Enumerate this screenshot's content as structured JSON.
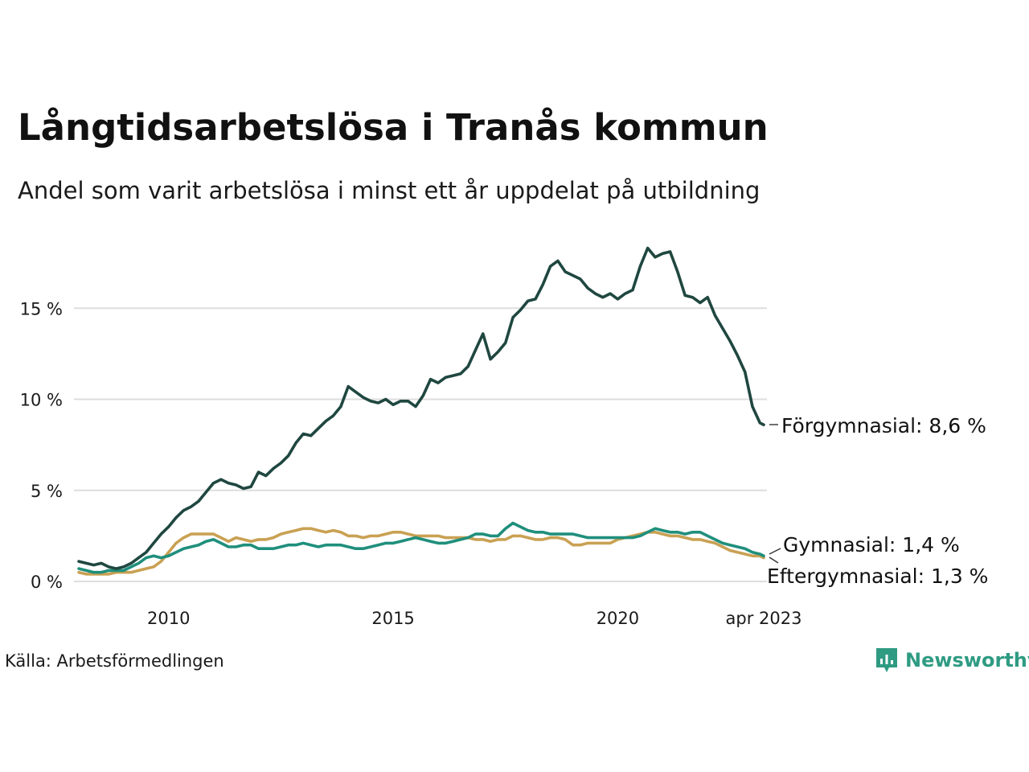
{
  "header": {
    "title": "Långtidsarbetslösa i Tranås kommun",
    "subtitle": "Andel som varit arbetslösa i minst ett år uppdelat på utbildning"
  },
  "footer": {
    "source": "Källa: Arbetsförmedlingen",
    "brand": "Newsworthy",
    "brand_color": "#2e9b82"
  },
  "chart_data": {
    "type": "line",
    "x_start": "2008-01",
    "x_end": "2023-04",
    "ylim": [
      0,
      19
    ],
    "grid": true,
    "y_ticks": [
      {
        "value": 0,
        "label": "0 %"
      },
      {
        "value": 5,
        "label": "5 %"
      },
      {
        "value": 10,
        "label": "10 %"
      },
      {
        "value": 15,
        "label": "15 %"
      }
    ],
    "x_ticks": [
      {
        "value": "2010-01",
        "label": "2010"
      },
      {
        "value": "2015-01",
        "label": "2015"
      },
      {
        "value": "2020-01",
        "label": "2020"
      },
      {
        "value": "2023-04",
        "label": "apr 2023"
      }
    ],
    "series": [
      {
        "name": "Förgymnasial",
        "end_label": "Förgymnasial: 8,6 %",
        "color": "#1f4740",
        "points": [
          [
            "2008-01",
            1.1
          ],
          [
            "2008-03",
            1.0
          ],
          [
            "2008-05",
            0.9
          ],
          [
            "2008-07",
            1.0
          ],
          [
            "2008-09",
            0.8
          ],
          [
            "2008-11",
            0.7
          ],
          [
            "2009-01",
            0.8
          ],
          [
            "2009-03",
            1.0
          ],
          [
            "2009-05",
            1.3
          ],
          [
            "2009-07",
            1.6
          ],
          [
            "2009-09",
            2.1
          ],
          [
            "2009-11",
            2.6
          ],
          [
            "2010-01",
            3.0
          ],
          [
            "2010-03",
            3.5
          ],
          [
            "2010-05",
            3.9
          ],
          [
            "2010-07",
            4.1
          ],
          [
            "2010-09",
            4.4
          ],
          [
            "2010-11",
            4.9
          ],
          [
            "2011-01",
            5.4
          ],
          [
            "2011-03",
            5.6
          ],
          [
            "2011-05",
            5.4
          ],
          [
            "2011-07",
            5.3
          ],
          [
            "2011-09",
            5.1
          ],
          [
            "2011-11",
            5.2
          ],
          [
            "2012-01",
            6.0
          ],
          [
            "2012-03",
            5.8
          ],
          [
            "2012-05",
            6.2
          ],
          [
            "2012-07",
            6.5
          ],
          [
            "2012-09",
            6.9
          ],
          [
            "2012-11",
            7.6
          ],
          [
            "2013-01",
            8.1
          ],
          [
            "2013-03",
            8.0
          ],
          [
            "2013-05",
            8.4
          ],
          [
            "2013-07",
            8.8
          ],
          [
            "2013-09",
            9.1
          ],
          [
            "2013-11",
            9.6
          ],
          [
            "2014-01",
            10.7
          ],
          [
            "2014-03",
            10.4
          ],
          [
            "2014-05",
            10.1
          ],
          [
            "2014-07",
            9.9
          ],
          [
            "2014-09",
            9.8
          ],
          [
            "2014-11",
            10.0
          ],
          [
            "2015-01",
            9.7
          ],
          [
            "2015-03",
            9.9
          ],
          [
            "2015-05",
            9.9
          ],
          [
            "2015-07",
            9.6
          ],
          [
            "2015-09",
            10.2
          ],
          [
            "2015-11",
            11.1
          ],
          [
            "2016-01",
            10.9
          ],
          [
            "2016-03",
            11.2
          ],
          [
            "2016-05",
            11.3
          ],
          [
            "2016-07",
            11.4
          ],
          [
            "2016-09",
            11.8
          ],
          [
            "2016-11",
            12.7
          ],
          [
            "2017-01",
            13.6
          ],
          [
            "2017-03",
            12.2
          ],
          [
            "2017-05",
            12.6
          ],
          [
            "2017-07",
            13.1
          ],
          [
            "2017-09",
            14.5
          ],
          [
            "2017-11",
            14.9
          ],
          [
            "2018-01",
            15.4
          ],
          [
            "2018-03",
            15.5
          ],
          [
            "2018-05",
            16.3
          ],
          [
            "2018-07",
            17.3
          ],
          [
            "2018-09",
            17.6
          ],
          [
            "2018-11",
            17.0
          ],
          [
            "2019-01",
            16.8
          ],
          [
            "2019-03",
            16.6
          ],
          [
            "2019-05",
            16.1
          ],
          [
            "2019-07",
            15.8
          ],
          [
            "2019-09",
            15.6
          ],
          [
            "2019-11",
            15.8
          ],
          [
            "2020-01",
            15.5
          ],
          [
            "2020-03",
            15.8
          ],
          [
            "2020-05",
            16.0
          ],
          [
            "2020-07",
            17.3
          ],
          [
            "2020-09",
            18.3
          ],
          [
            "2020-11",
            17.8
          ],
          [
            "2021-01",
            18.0
          ],
          [
            "2021-03",
            18.1
          ],
          [
            "2021-05",
            17.0
          ],
          [
            "2021-07",
            15.7
          ],
          [
            "2021-09",
            15.6
          ],
          [
            "2021-11",
            15.3
          ],
          [
            "2022-01",
            15.6
          ],
          [
            "2022-03",
            14.6
          ],
          [
            "2022-05",
            13.9
          ],
          [
            "2022-07",
            13.2
          ],
          [
            "2022-09",
            12.4
          ],
          [
            "2022-11",
            11.5
          ],
          [
            "2023-01",
            9.6
          ],
          [
            "2023-03",
            8.7
          ],
          [
            "2023-04",
            8.6
          ]
        ]
      },
      {
        "name": "Gymnasial",
        "end_label": "Gymnasial: 1,4 %",
        "color": "#1f8f7c",
        "points": [
          [
            "2008-01",
            0.7
          ],
          [
            "2008-03",
            0.6
          ],
          [
            "2008-05",
            0.5
          ],
          [
            "2008-07",
            0.5
          ],
          [
            "2008-09",
            0.6
          ],
          [
            "2008-11",
            0.6
          ],
          [
            "2009-01",
            0.6
          ],
          [
            "2009-03",
            0.8
          ],
          [
            "2009-05",
            1.0
          ],
          [
            "2009-07",
            1.3
          ],
          [
            "2009-09",
            1.4
          ],
          [
            "2009-11",
            1.3
          ],
          [
            "2010-01",
            1.4
          ],
          [
            "2010-03",
            1.6
          ],
          [
            "2010-05",
            1.8
          ],
          [
            "2010-07",
            1.9
          ],
          [
            "2010-09",
            2.0
          ],
          [
            "2010-11",
            2.2
          ],
          [
            "2011-01",
            2.3
          ],
          [
            "2011-03",
            2.1
          ],
          [
            "2011-05",
            1.9
          ],
          [
            "2011-07",
            1.9
          ],
          [
            "2011-09",
            2.0
          ],
          [
            "2011-11",
            2.0
          ],
          [
            "2012-01",
            1.8
          ],
          [
            "2012-03",
            1.8
          ],
          [
            "2012-05",
            1.8
          ],
          [
            "2012-07",
            1.9
          ],
          [
            "2012-09",
            2.0
          ],
          [
            "2012-11",
            2.0
          ],
          [
            "2013-01",
            2.1
          ],
          [
            "2013-03",
            2.0
          ],
          [
            "2013-05",
            1.9
          ],
          [
            "2013-07",
            2.0
          ],
          [
            "2013-09",
            2.0
          ],
          [
            "2013-11",
            2.0
          ],
          [
            "2014-01",
            1.9
          ],
          [
            "2014-03",
            1.8
          ],
          [
            "2014-05",
            1.8
          ],
          [
            "2014-07",
            1.9
          ],
          [
            "2014-09",
            2.0
          ],
          [
            "2014-11",
            2.1
          ],
          [
            "2015-01",
            2.1
          ],
          [
            "2015-03",
            2.2
          ],
          [
            "2015-05",
            2.3
          ],
          [
            "2015-07",
            2.4
          ],
          [
            "2015-09",
            2.3
          ],
          [
            "2015-11",
            2.2
          ],
          [
            "2016-01",
            2.1
          ],
          [
            "2016-03",
            2.1
          ],
          [
            "2016-05",
            2.2
          ],
          [
            "2016-07",
            2.3
          ],
          [
            "2016-09",
            2.4
          ],
          [
            "2016-11",
            2.6
          ],
          [
            "2017-01",
            2.6
          ],
          [
            "2017-03",
            2.5
          ],
          [
            "2017-05",
            2.5
          ],
          [
            "2017-07",
            2.9
          ],
          [
            "2017-09",
            3.2
          ],
          [
            "2017-11",
            3.0
          ],
          [
            "2018-01",
            2.8
          ],
          [
            "2018-03",
            2.7
          ],
          [
            "2018-05",
            2.7
          ],
          [
            "2018-07",
            2.6
          ],
          [
            "2018-09",
            2.6
          ],
          [
            "2018-11",
            2.6
          ],
          [
            "2019-01",
            2.6
          ],
          [
            "2019-03",
            2.5
          ],
          [
            "2019-05",
            2.4
          ],
          [
            "2019-07",
            2.4
          ],
          [
            "2019-09",
            2.4
          ],
          [
            "2019-11",
            2.4
          ],
          [
            "2020-01",
            2.4
          ],
          [
            "2020-03",
            2.4
          ],
          [
            "2020-05",
            2.4
          ],
          [
            "2020-07",
            2.5
          ],
          [
            "2020-09",
            2.7
          ],
          [
            "2020-11",
            2.9
          ],
          [
            "2021-01",
            2.8
          ],
          [
            "2021-03",
            2.7
          ],
          [
            "2021-05",
            2.7
          ],
          [
            "2021-07",
            2.6
          ],
          [
            "2021-09",
            2.7
          ],
          [
            "2021-11",
            2.7
          ],
          [
            "2022-01",
            2.5
          ],
          [
            "2022-03",
            2.3
          ],
          [
            "2022-05",
            2.1
          ],
          [
            "2022-07",
            2.0
          ],
          [
            "2022-09",
            1.9
          ],
          [
            "2022-11",
            1.8
          ],
          [
            "2023-01",
            1.6
          ],
          [
            "2023-03",
            1.5
          ],
          [
            "2023-04",
            1.4
          ]
        ]
      },
      {
        "name": "Eftergymnasial",
        "end_label": "Eftergymnasial: 1,3 %",
        "color": "#c9a153",
        "points": [
          [
            "2008-01",
            0.5
          ],
          [
            "2008-03",
            0.4
          ],
          [
            "2008-05",
            0.4
          ],
          [
            "2008-07",
            0.4
          ],
          [
            "2008-09",
            0.4
          ],
          [
            "2008-11",
            0.5
          ],
          [
            "2009-01",
            0.5
          ],
          [
            "2009-03",
            0.5
          ],
          [
            "2009-05",
            0.6
          ],
          [
            "2009-07",
            0.7
          ],
          [
            "2009-09",
            0.8
          ],
          [
            "2009-11",
            1.1
          ],
          [
            "2010-01",
            1.6
          ],
          [
            "2010-03",
            2.1
          ],
          [
            "2010-05",
            2.4
          ],
          [
            "2010-07",
            2.6
          ],
          [
            "2010-09",
            2.6
          ],
          [
            "2010-11",
            2.6
          ],
          [
            "2011-01",
            2.6
          ],
          [
            "2011-03",
            2.4
          ],
          [
            "2011-05",
            2.2
          ],
          [
            "2011-07",
            2.4
          ],
          [
            "2011-09",
            2.3
          ],
          [
            "2011-11",
            2.2
          ],
          [
            "2012-01",
            2.3
          ],
          [
            "2012-03",
            2.3
          ],
          [
            "2012-05",
            2.4
          ],
          [
            "2012-07",
            2.6
          ],
          [
            "2012-09",
            2.7
          ],
          [
            "2012-11",
            2.8
          ],
          [
            "2013-01",
            2.9
          ],
          [
            "2013-03",
            2.9
          ],
          [
            "2013-05",
            2.8
          ],
          [
            "2013-07",
            2.7
          ],
          [
            "2013-09",
            2.8
          ],
          [
            "2013-11",
            2.7
          ],
          [
            "2014-01",
            2.5
          ],
          [
            "2014-03",
            2.5
          ],
          [
            "2014-05",
            2.4
          ],
          [
            "2014-07",
            2.5
          ],
          [
            "2014-09",
            2.5
          ],
          [
            "2014-11",
            2.6
          ],
          [
            "2015-01",
            2.7
          ],
          [
            "2015-03",
            2.7
          ],
          [
            "2015-05",
            2.6
          ],
          [
            "2015-07",
            2.5
          ],
          [
            "2015-09",
            2.5
          ],
          [
            "2015-11",
            2.5
          ],
          [
            "2016-01",
            2.5
          ],
          [
            "2016-03",
            2.4
          ],
          [
            "2016-05",
            2.4
          ],
          [
            "2016-07",
            2.4
          ],
          [
            "2016-09",
            2.4
          ],
          [
            "2016-11",
            2.3
          ],
          [
            "2017-01",
            2.3
          ],
          [
            "2017-03",
            2.2
          ],
          [
            "2017-05",
            2.3
          ],
          [
            "2017-07",
            2.3
          ],
          [
            "2017-09",
            2.5
          ],
          [
            "2017-11",
            2.5
          ],
          [
            "2018-01",
            2.4
          ],
          [
            "2018-03",
            2.3
          ],
          [
            "2018-05",
            2.3
          ],
          [
            "2018-07",
            2.4
          ],
          [
            "2018-09",
            2.4
          ],
          [
            "2018-11",
            2.3
          ],
          [
            "2019-01",
            2.0
          ],
          [
            "2019-03",
            2.0
          ],
          [
            "2019-05",
            2.1
          ],
          [
            "2019-07",
            2.1
          ],
          [
            "2019-09",
            2.1
          ],
          [
            "2019-11",
            2.1
          ],
          [
            "2020-01",
            2.3
          ],
          [
            "2020-03",
            2.4
          ],
          [
            "2020-05",
            2.5
          ],
          [
            "2020-07",
            2.6
          ],
          [
            "2020-09",
            2.7
          ],
          [
            "2020-11",
            2.7
          ],
          [
            "2021-01",
            2.6
          ],
          [
            "2021-03",
            2.5
          ],
          [
            "2021-05",
            2.5
          ],
          [
            "2021-07",
            2.4
          ],
          [
            "2021-09",
            2.3
          ],
          [
            "2021-11",
            2.3
          ],
          [
            "2022-01",
            2.2
          ],
          [
            "2022-03",
            2.1
          ],
          [
            "2022-05",
            1.9
          ],
          [
            "2022-07",
            1.7
          ],
          [
            "2022-09",
            1.6
          ],
          [
            "2022-11",
            1.5
          ],
          [
            "2023-01",
            1.4
          ],
          [
            "2023-03",
            1.4
          ],
          [
            "2023-04",
            1.3
          ]
        ]
      }
    ]
  }
}
